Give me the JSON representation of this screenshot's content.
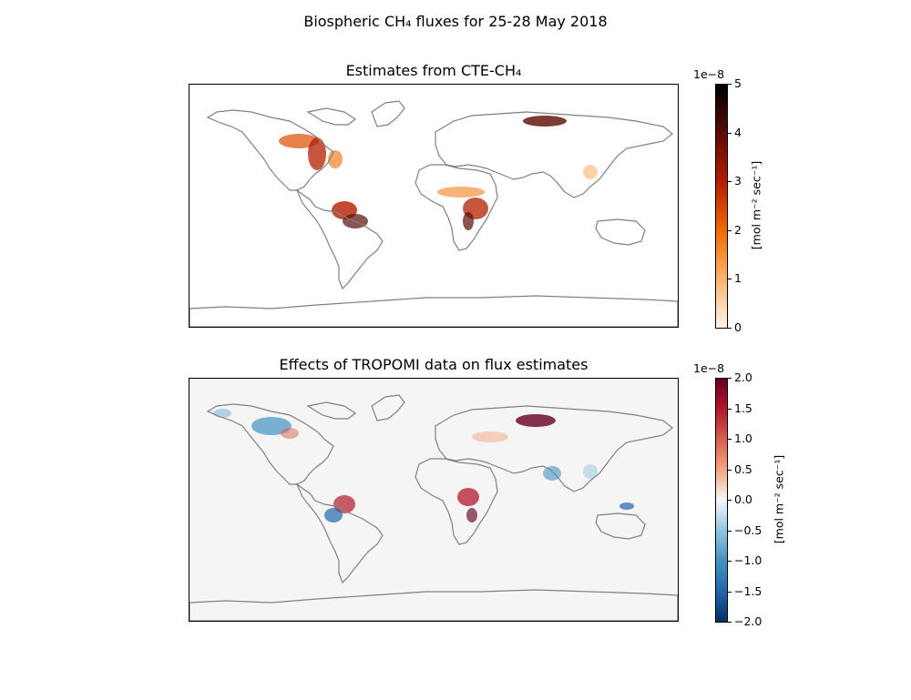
{
  "figure": {
    "title": "Biospheric CH₄ fluxes for 25-28 May 2018"
  },
  "panels": [
    {
      "title": "Estimates from CTE-CH₄",
      "colorbar": {
        "exponent": "1e−8",
        "ticks": [
          "5",
          "4",
          "3",
          "2",
          "1",
          "0"
        ],
        "label": "[mol m⁻² sec⁻¹]",
        "colors": [
          "#000000",
          "#5a0b06",
          "#b41e00",
          "#f06a00",
          "#ffb46e",
          "#fff5eb"
        ]
      }
    },
    {
      "title": "Effects of TROPOMI data on flux estimates",
      "colorbar": {
        "exponent": "1e−8",
        "ticks": [
          "2.0",
          "1.5",
          "1.0",
          "0.5",
          "0.0",
          "−0.5",
          "−1.0",
          "−1.5",
          "−2.0"
        ],
        "label": "[mol m⁻² sec⁻¹]",
        "colors": [
          "#67001f",
          "#b2182b",
          "#d6604d",
          "#f4a582",
          "#f7f7f7",
          "#92c5de",
          "#4393c3",
          "#2166ac",
          "#053061"
        ]
      }
    }
  ],
  "map_style": {
    "coast_color": "#808080",
    "ocean_top": "#ffffff",
    "ocean_bottom": "#f5f5f5"
  }
}
